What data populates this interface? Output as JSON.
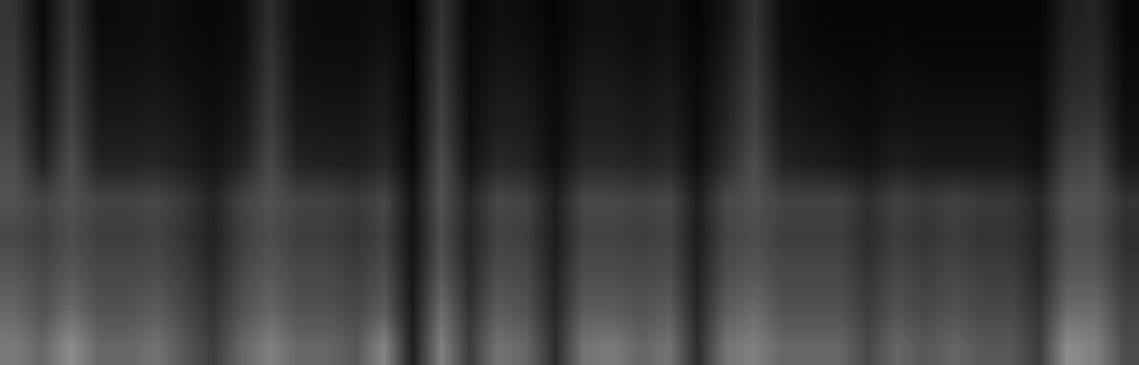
{
  "chart_data": {
    "type": "heatmap",
    "color": "gray",
    "tick_labels": false,
    "color_range": [
      0,
      1
    ],
    "cells": [
      [
        0.2,
        0.04,
        0.2,
        0.04,
        0.05,
        0.06,
        0.04,
        0.03,
        0.05,
        0.18,
        0.05,
        0.04,
        0.04,
        0.06,
        0.01,
        0.2,
        0.03,
        0.06,
        0.05,
        0.02,
        0.06,
        0.06,
        0.05,
        0.06,
        0.02,
        0.08,
        0.2,
        0.05,
        0.03,
        0.02,
        0.02,
        0.02,
        0.02,
        0.02,
        0.02,
        0.02,
        0.02,
        0.12,
        0.14,
        0.03
      ],
      [
        0.22,
        0.05,
        0.22,
        0.06,
        0.06,
        0.07,
        0.05,
        0.04,
        0.06,
        0.2,
        0.06,
        0.05,
        0.05,
        0.08,
        0.02,
        0.22,
        0.04,
        0.08,
        0.07,
        0.03,
        0.08,
        0.08,
        0.06,
        0.08,
        0.03,
        0.1,
        0.22,
        0.06,
        0.04,
        0.03,
        0.03,
        0.04,
        0.03,
        0.03,
        0.03,
        0.03,
        0.03,
        0.14,
        0.16,
        0.04
      ],
      [
        0.24,
        0.07,
        0.24,
        0.08,
        0.08,
        0.09,
        0.07,
        0.05,
        0.08,
        0.22,
        0.08,
        0.07,
        0.07,
        0.1,
        0.02,
        0.24,
        0.05,
        0.1,
        0.09,
        0.04,
        0.1,
        0.1,
        0.08,
        0.1,
        0.04,
        0.12,
        0.24,
        0.08,
        0.06,
        0.05,
        0.04,
        0.06,
        0.05,
        0.05,
        0.05,
        0.05,
        0.04,
        0.16,
        0.18,
        0.05
      ],
      [
        0.26,
        0.09,
        0.26,
        0.1,
        0.1,
        0.11,
        0.09,
        0.06,
        0.1,
        0.24,
        0.1,
        0.09,
        0.09,
        0.12,
        0.03,
        0.26,
        0.06,
        0.12,
        0.11,
        0.05,
        0.12,
        0.12,
        0.1,
        0.12,
        0.05,
        0.14,
        0.26,
        0.1,
        0.08,
        0.07,
        0.05,
        0.08,
        0.07,
        0.07,
        0.07,
        0.07,
        0.05,
        0.2,
        0.22,
        0.07
      ],
      [
        0.3,
        0.14,
        0.3,
        0.14,
        0.14,
        0.15,
        0.12,
        0.08,
        0.14,
        0.28,
        0.14,
        0.13,
        0.12,
        0.16,
        0.04,
        0.3,
        0.08,
        0.16,
        0.14,
        0.06,
        0.16,
        0.16,
        0.14,
        0.16,
        0.06,
        0.18,
        0.3,
        0.14,
        0.12,
        0.1,
        0.08,
        0.12,
        0.1,
        0.1,
        0.1,
        0.1,
        0.07,
        0.26,
        0.28,
        0.1
      ],
      [
        0.32,
        0.26,
        0.32,
        0.26,
        0.26,
        0.28,
        0.22,
        0.14,
        0.26,
        0.32,
        0.26,
        0.26,
        0.22,
        0.28,
        0.08,
        0.32,
        0.15,
        0.28,
        0.26,
        0.12,
        0.28,
        0.28,
        0.26,
        0.28,
        0.12,
        0.28,
        0.32,
        0.26,
        0.26,
        0.26,
        0.18,
        0.26,
        0.22,
        0.26,
        0.22,
        0.22,
        0.15,
        0.32,
        0.32,
        0.2
      ],
      [
        0.28,
        0.24,
        0.3,
        0.24,
        0.24,
        0.26,
        0.2,
        0.13,
        0.24,
        0.3,
        0.24,
        0.24,
        0.2,
        0.26,
        0.07,
        0.3,
        0.14,
        0.26,
        0.24,
        0.11,
        0.26,
        0.26,
        0.24,
        0.26,
        0.11,
        0.26,
        0.3,
        0.24,
        0.24,
        0.24,
        0.17,
        0.24,
        0.2,
        0.24,
        0.2,
        0.2,
        0.14,
        0.3,
        0.3,
        0.18
      ],
      [
        0.34,
        0.28,
        0.34,
        0.28,
        0.28,
        0.3,
        0.24,
        0.16,
        0.28,
        0.34,
        0.28,
        0.28,
        0.24,
        0.3,
        0.09,
        0.34,
        0.16,
        0.3,
        0.28,
        0.13,
        0.3,
        0.3,
        0.28,
        0.3,
        0.13,
        0.3,
        0.34,
        0.28,
        0.28,
        0.28,
        0.2,
        0.28,
        0.24,
        0.28,
        0.24,
        0.24,
        0.16,
        0.34,
        0.34,
        0.22
      ],
      [
        0.4,
        0.32,
        0.42,
        0.32,
        0.32,
        0.36,
        0.28,
        0.2,
        0.32,
        0.4,
        0.32,
        0.32,
        0.28,
        0.36,
        0.1,
        0.42,
        0.2,
        0.36,
        0.32,
        0.15,
        0.36,
        0.36,
        0.32,
        0.36,
        0.15,
        0.36,
        0.42,
        0.32,
        0.32,
        0.32,
        0.24,
        0.32,
        0.28,
        0.32,
        0.28,
        0.28,
        0.2,
        0.42,
        0.42,
        0.26
      ],
      [
        0.48,
        0.4,
        0.55,
        0.4,
        0.4,
        0.45,
        0.34,
        0.24,
        0.4,
        0.5,
        0.4,
        0.4,
        0.34,
        0.52,
        0.12,
        0.5,
        0.24,
        0.45,
        0.4,
        0.18,
        0.45,
        0.48,
        0.4,
        0.45,
        0.18,
        0.45,
        0.5,
        0.4,
        0.4,
        0.4,
        0.28,
        0.4,
        0.34,
        0.4,
        0.34,
        0.34,
        0.24,
        0.55,
        0.5,
        0.3
      ]
    ]
  }
}
